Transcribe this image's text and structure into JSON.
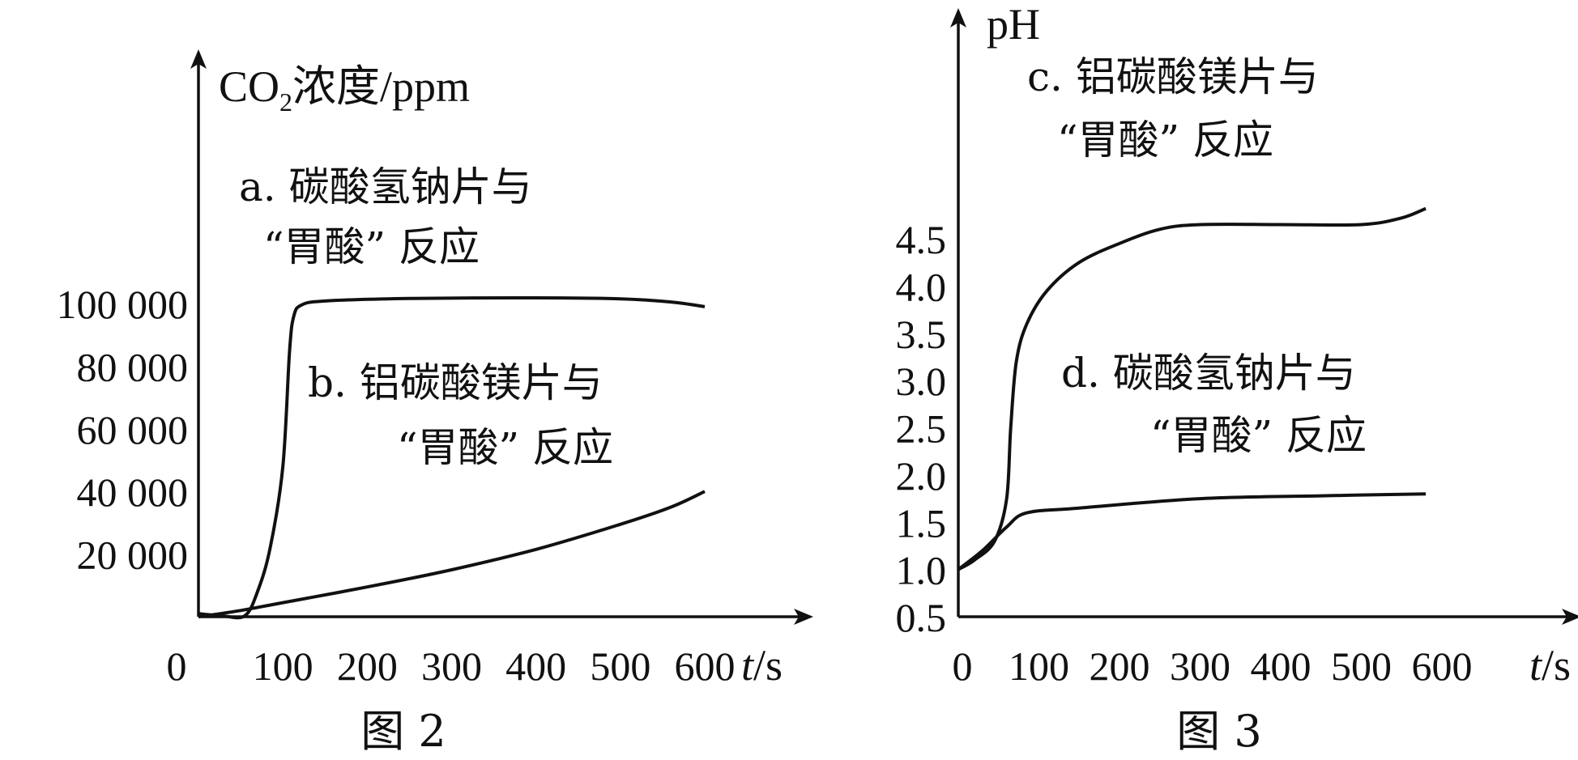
{
  "chart_data": [
    {
      "type": "line",
      "caption": "图 2",
      "ylabel": {
        "prefix": "CO",
        "sub": "2",
        "suffix": "浓度/ppm"
      },
      "xlabel": {
        "var": "t",
        "unit": "/s"
      },
      "origin_label": "0",
      "x_ticks": [
        "100",
        "200",
        "300",
        "400",
        "500",
        "600"
      ],
      "y_ticks": [
        "20 000",
        "40 000",
        "60 000",
        "80 000",
        "100 000"
      ],
      "xlim": [
        0,
        600
      ],
      "ylim": [
        0,
        100000
      ],
      "series": [
        {
          "label_lines": [
            "a. 碳酸氢钠片与",
            "“胃酸” 反应"
          ],
          "points": [
            [
              0,
              1000
            ],
            [
              30,
              200
            ],
            [
              55,
              300
            ],
            [
              70,
              8000
            ],
            [
              85,
              22000
            ],
            [
              100,
              48000
            ],
            [
              108,
              85000
            ],
            [
              113,
              96000
            ],
            [
              122,
              99500
            ],
            [
              150,
              100800
            ],
            [
              250,
              101600
            ],
            [
              400,
              101800
            ],
            [
              500,
              101500
            ],
            [
              560,
              100500
            ],
            [
              600,
              99000
            ]
          ]
        },
        {
          "label_lines": [
            "b. 铝碳酸镁片与",
            "“胃酸” 反应"
          ],
          "points": [
            [
              0,
              0
            ],
            [
              50,
              2000
            ],
            [
              100,
              4500
            ],
            [
              200,
              9500
            ],
            [
              300,
              15000
            ],
            [
              400,
              21500
            ],
            [
              500,
              29500
            ],
            [
              560,
              35000
            ],
            [
              600,
              40000
            ]
          ]
        }
      ]
    },
    {
      "type": "line",
      "caption": "图 3",
      "ylabel": "pH",
      "xlabel": {
        "var": "t",
        "unit": "/s"
      },
      "origin_label": "0",
      "x_ticks": [
        "100",
        "200",
        "300",
        "400",
        "500",
        "600"
      ],
      "y_ticks": [
        "0.5",
        "1.0",
        "1.5",
        "2.0",
        "2.5",
        "3.0",
        "3.5",
        "4.0",
        "4.5"
      ],
      "xlim": [
        0,
        600
      ],
      "ylim": [
        0.5,
        4.5
      ],
      "series": [
        {
          "label_lines": [
            "c. 铝碳酸镁片与",
            "“胃酸” 反应"
          ],
          "points": [
            [
              0,
              1.0
            ],
            [
              20,
              1.1
            ],
            [
              45,
              1.3
            ],
            [
              60,
              1.75
            ],
            [
              65,
              2.5
            ],
            [
              72,
              3.2
            ],
            [
              85,
              3.6
            ],
            [
              110,
              3.95
            ],
            [
              150,
              4.25
            ],
            [
              200,
              4.45
            ],
            [
              250,
              4.6
            ],
            [
              300,
              4.65
            ],
            [
              400,
              4.65
            ],
            [
              500,
              4.65
            ],
            [
              550,
              4.72
            ],
            [
              580,
              4.82
            ]
          ]
        },
        {
          "label_lines": [
            "d. 碳酸氢钠片与",
            "“胃酸” 反应"
          ],
          "points": [
            [
              0,
              1.0
            ],
            [
              30,
              1.2
            ],
            [
              60,
              1.45
            ],
            [
              85,
              1.6
            ],
            [
              150,
              1.65
            ],
            [
              300,
              1.75
            ],
            [
              450,
              1.78
            ],
            [
              580,
              1.8
            ]
          ]
        }
      ]
    }
  ]
}
